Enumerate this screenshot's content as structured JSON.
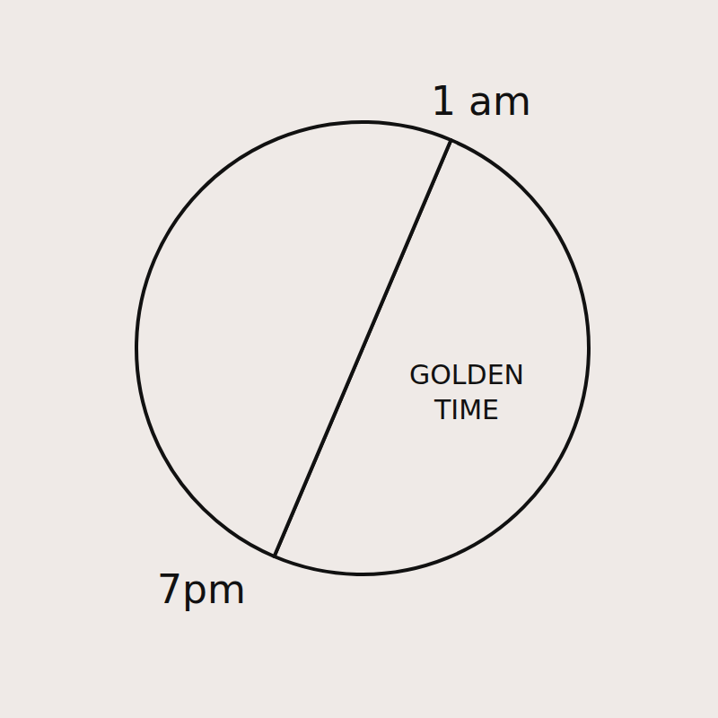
{
  "chart_data": {
    "type": "pie",
    "categories": [
      "GOLDEN TIME",
      null
    ],
    "values": [
      50,
      50
    ],
    "colors": [
      "#efeae7",
      "#efeae7"
    ],
    "annotations": [
      {
        "text": "1 am"
      },
      {
        "text": "7pm"
      }
    ]
  }
}
